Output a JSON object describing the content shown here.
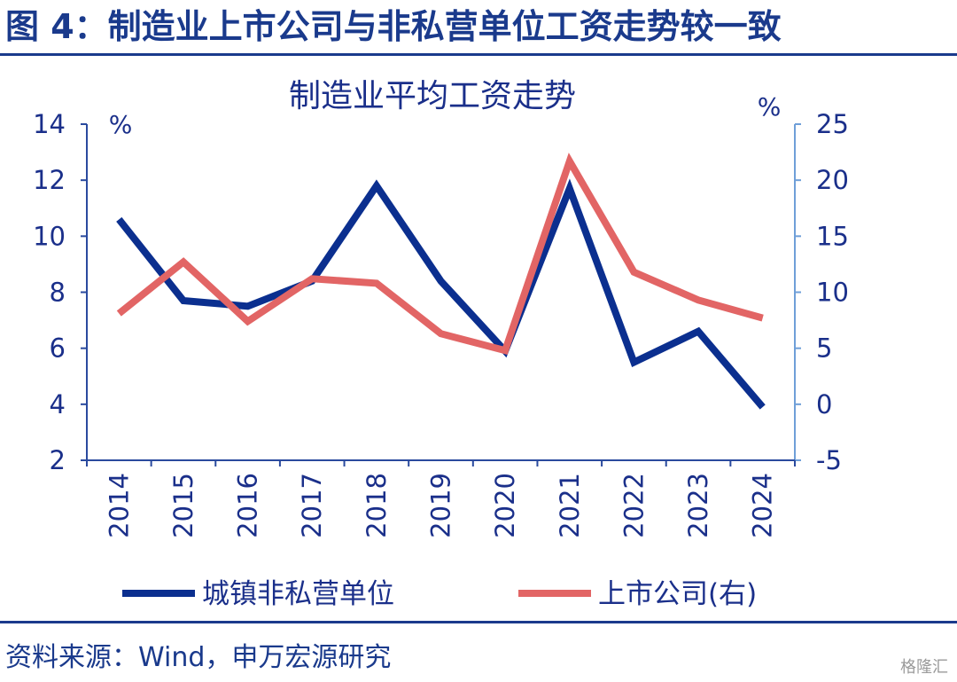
{
  "figure": {
    "title": "图 4：制造业上市公司与非私营单位工资走势较一致",
    "source": "资料来源：Wind，申万宏源研究",
    "watermark": "格隆汇"
  },
  "colors": {
    "brand": "#1a3a8c",
    "axis_right": "#6f9fd8"
  },
  "chart_data": {
    "type": "line",
    "title": "制造业平均工资走势",
    "categories": [
      "2014",
      "2015",
      "2016",
      "2017",
      "2018",
      "2019",
      "2020",
      "2021",
      "2022",
      "2023",
      "2024"
    ],
    "y_left": {
      "label": "%",
      "range": [
        2,
        14
      ],
      "ticks": [
        2,
        4,
        6,
        8,
        10,
        12,
        14
      ]
    },
    "y_right": {
      "label": "%",
      "range": [
        -5,
        25
      ],
      "ticks": [
        -5,
        0,
        5,
        10,
        15,
        20,
        25
      ]
    },
    "legend_position": "bottom",
    "grid": false,
    "series": [
      {
        "name": "城镇非私营单位",
        "axis": "left",
        "color": "#0b2f8f",
        "values": [
          10.6,
          7.7,
          7.5,
          8.4,
          11.8,
          8.4,
          5.9,
          11.7,
          5.5,
          6.6,
          3.9
        ]
      },
      {
        "name": "上市公司(右)",
        "axis": "right",
        "color": "#e26565",
        "values": [
          8.1,
          12.7,
          7.4,
          11.2,
          10.8,
          6.3,
          4.8,
          21.7,
          11.8,
          9.3,
          7.7
        ]
      }
    ]
  }
}
